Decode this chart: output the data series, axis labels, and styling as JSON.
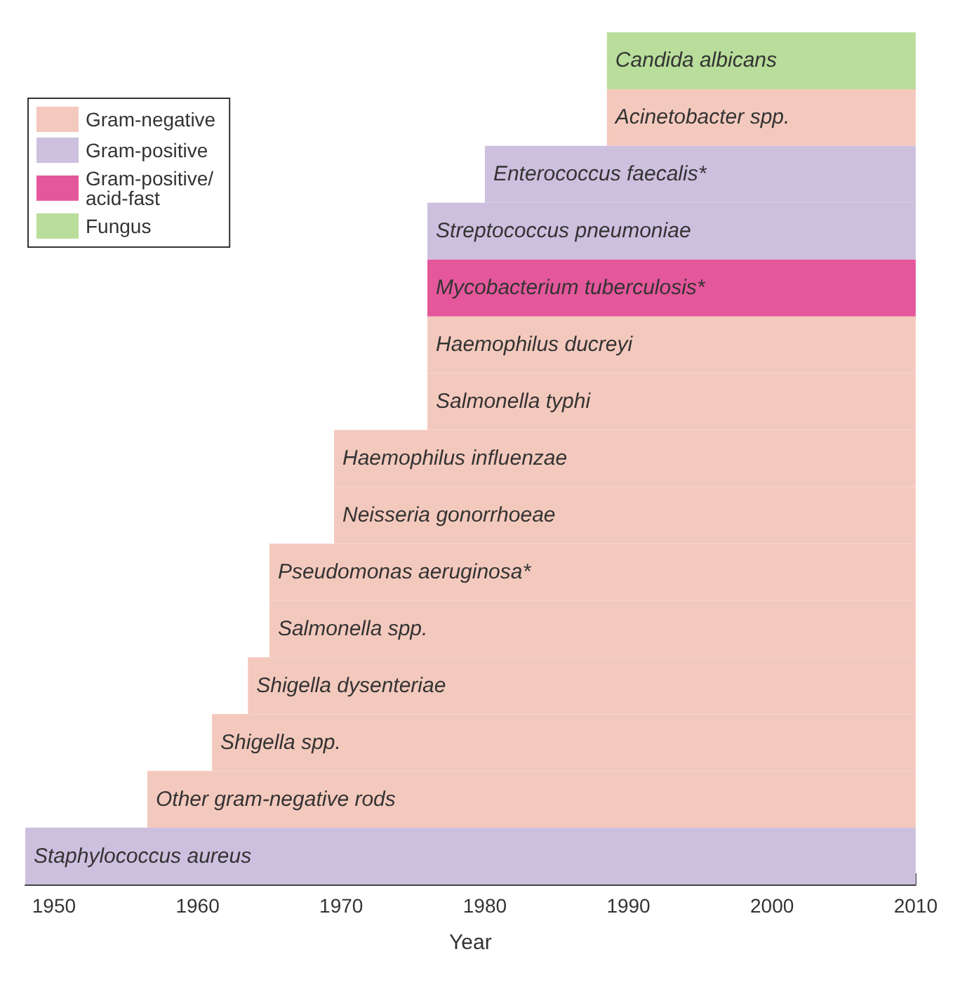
{
  "chart_data": {
    "type": "bar",
    "orientation": "horizontal",
    "xlabel": "Year",
    "categories": [
      "Candida albicans",
      "Acinetobacter spp.",
      "Enterococcus faecalis*",
      "Streptococcus pneumoniae",
      "Mycobacterium tuberculosis*",
      "Haemophilus ducreyi",
      "Salmonella typhi",
      "Haemophilus influenzae",
      "Neisseria gonorrhoeae",
      "Pseudomonas aeruginosa*",
      "Salmonella spp.",
      "Shigella dysenteriae",
      "Shigella spp.",
      "Other gram-negative rods",
      "Staphylococcus aureus"
    ],
    "series": [
      {
        "name": "Gram-negative",
        "color": "#f4c9bd",
        "base": [
          null,
          1988.5,
          null,
          null,
          null,
          1976,
          1976,
          1969.5,
          1969.5,
          1965,
          1965,
          1963.5,
          1961,
          1956.5,
          null
        ],
        "values": [
          null,
          21.5,
          null,
          null,
          null,
          34,
          34,
          40.5,
          40.5,
          45,
          45,
          46.5,
          49,
          53.5,
          null
        ]
      },
      {
        "name": "Gram-positive",
        "color": "#cdc0df",
        "base": [
          null,
          null,
          1980,
          1976,
          null,
          null,
          null,
          null,
          null,
          null,
          null,
          null,
          null,
          null,
          1948
        ],
        "values": [
          null,
          null,
          30,
          34,
          null,
          null,
          null,
          null,
          null,
          null,
          null,
          null,
          null,
          null,
          62
        ]
      },
      {
        "name": "Gram-positive/acid-fast",
        "color": "#e5579b",
        "base": [
          null,
          null,
          null,
          null,
          1976,
          null,
          null,
          null,
          null,
          null,
          null,
          null,
          null,
          null,
          null
        ],
        "values": [
          null,
          null,
          null,
          null,
          34,
          null,
          null,
          null,
          null,
          null,
          null,
          null,
          null,
          null,
          null
        ]
      },
      {
        "name": "Fungus",
        "color": "#b9dd9b",
        "base": [
          1988.5,
          null,
          null,
          null,
          null,
          null,
          null,
          null,
          null,
          null,
          null,
          null,
          null,
          null,
          null
        ],
        "values": [
          21.5,
          null,
          null,
          null,
          null,
          null,
          null,
          null,
          null,
          null,
          null,
          null,
          null,
          null,
          null
        ]
      }
    ],
    "xlim": [
      1948,
      2010
    ],
    "xticks": [
      1950,
      1960,
      1970,
      1980,
      1990,
      2000,
      2010
    ],
    "tick_labels": "x",
    "legend": "top left",
    "grid": false
  }
}
